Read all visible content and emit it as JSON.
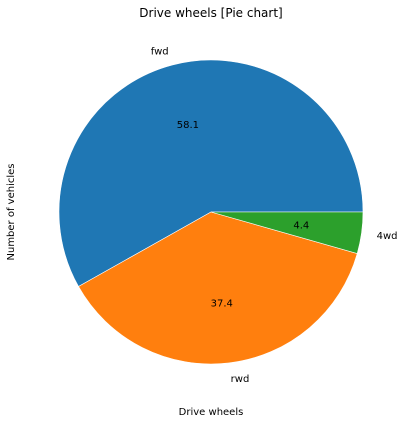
{
  "chart_data": {
    "type": "pie",
    "title": "Drive wheels [Pie chart]",
    "xlabel": "Drive wheels",
    "ylabel": "Number of vehicles",
    "categories": [
      "fwd",
      "rwd",
      "4wd"
    ],
    "values": [
      58.1,
      37.4,
      4.4
    ],
    "value_labels": [
      "58.1",
      "37.4",
      "4.4"
    ],
    "colors": [
      "#1f77b4",
      "#ff7f0e",
      "#2ca02c"
    ],
    "start_angle_deg": 0,
    "direction": "counterclockwise",
    "legend": "none"
  }
}
